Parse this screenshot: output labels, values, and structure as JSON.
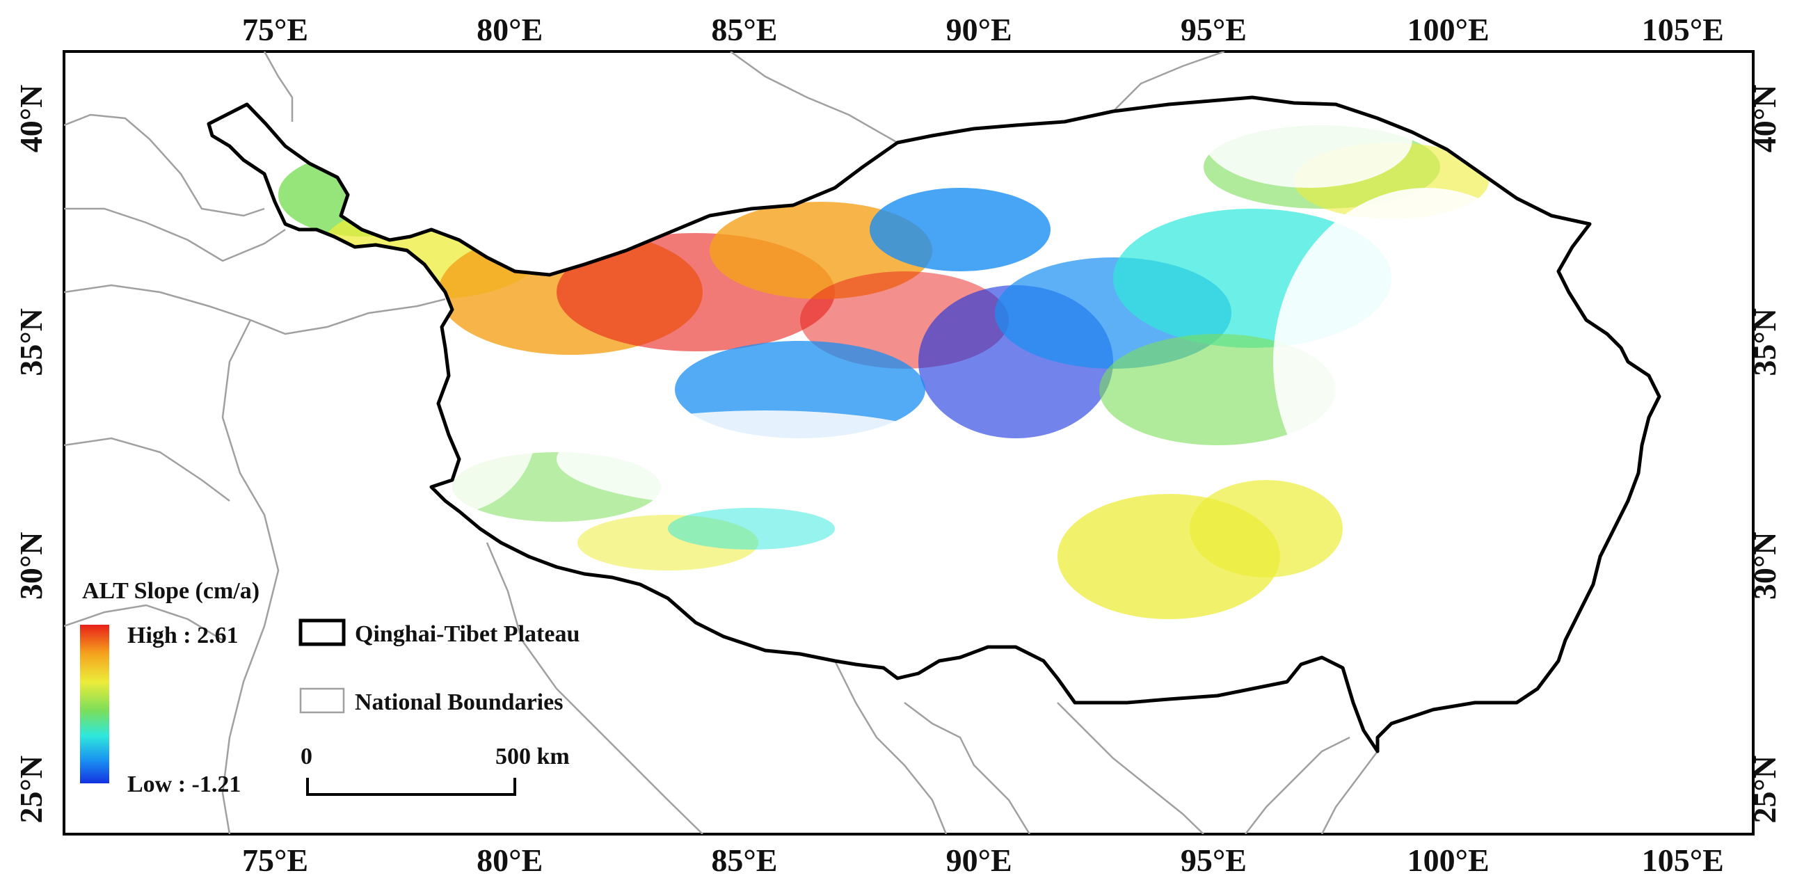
{
  "map": {
    "x_ticks": [
      "75°E",
      "80°E",
      "85°E",
      "90°E",
      "95°E",
      "100°E",
      "105°E"
    ],
    "y_ticks": [
      "40°N",
      "35°N",
      "30°N",
      "25°N"
    ],
    "x_tick_lon": [
      75,
      80,
      85,
      90,
      95,
      100,
      105
    ],
    "y_tick_lat": [
      40,
      35,
      30,
      25
    ],
    "lon_range": [
      70.5,
      106.5
    ],
    "lat_range": [
      24.0,
      41.5
    ],
    "legend": {
      "colorbar_title": "ALT Slope (cm/a)",
      "high_label": "High : 2.61",
      "low_label": "Low : -1.21",
      "high_value": 2.61,
      "low_value": -1.21,
      "ramp_colors": [
        "#e8201a",
        "#f5a21c",
        "#ecec3a",
        "#7cde5a",
        "#2ee8dc",
        "#1a8ef2",
        "#1432e0"
      ],
      "items": [
        {
          "label": "Qinghai-Tibet Plateau",
          "symbol": "thick-black-outline"
        },
        {
          "label": "National Boundaries",
          "symbol": "thin-gray-outline"
        }
      ]
    },
    "scalebar": {
      "start_label": "0",
      "end_label": "500 km"
    },
    "colors": {
      "plateau_outline": "#000000",
      "national_boundaries": "#a0a0a0",
      "frame": "#000000"
    }
  }
}
